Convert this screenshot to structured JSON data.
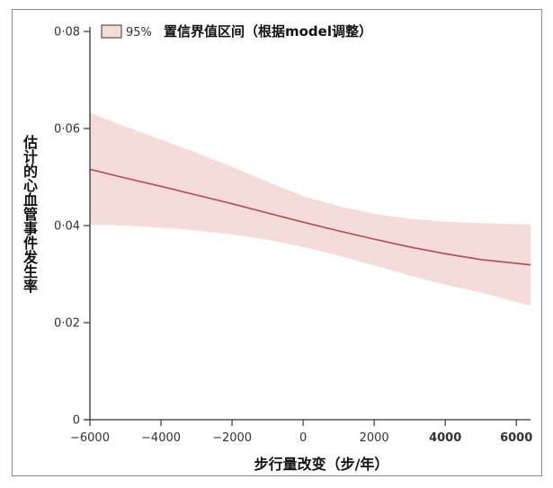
{
  "chart_data": {
    "type": "line",
    "xlabel": "步行量改变（步/年）",
    "ylabel": "估计的心血管事件发生率",
    "xlim": [
      -6000,
      6400
    ],
    "ylim": [
      0,
      0.08
    ],
    "x_ticks": [
      {
        "value": -6000,
        "label": "−6000"
      },
      {
        "value": -4000,
        "label": "−4000"
      },
      {
        "value": -2000,
        "label": "−2000"
      },
      {
        "value": 0,
        "label": "0"
      },
      {
        "value": 2000,
        "label": "2000"
      },
      {
        "value": 4000,
        "label": "4000"
      },
      {
        "value": 6000,
        "label": "6000"
      }
    ],
    "y_ticks": [
      {
        "value": 0,
        "label": "0"
      },
      {
        "value": 0.02,
        "label": "0·02"
      },
      {
        "value": 0.04,
        "label": "0·04"
      },
      {
        "value": 0.06,
        "label": "0·06"
      },
      {
        "value": 0.08,
        "label": "0·08"
      }
    ],
    "legend": {
      "percent": "95%",
      "label": "置信界值区间（根据model调整）",
      "position": "top-left"
    },
    "grid": false,
    "series": [
      {
        "x": [
          -6000,
          -5000,
          -4000,
          -3000,
          -2000,
          -1000,
          0,
          1000,
          2000,
          3000,
          4000,
          5000,
          6400
        ],
        "values": [
          0.0516,
          0.0498,
          0.0481,
          0.0463,
          0.0445,
          0.0426,
          0.0407,
          0.0389,
          0.0372,
          0.0356,
          0.0342,
          0.033,
          0.0319
        ],
        "lower": [
          0.0402,
          0.04,
          0.0396,
          0.039,
          0.0382,
          0.0371,
          0.0356,
          0.0338,
          0.0318,
          0.0297,
          0.0278,
          0.0262,
          0.0235
        ],
        "upper": [
          0.0633,
          0.0604,
          0.0577,
          0.055,
          0.0521,
          0.049,
          0.0461,
          0.044,
          0.0424,
          0.0414,
          0.0408,
          0.0405,
          0.0402
        ]
      }
    ],
    "colors": {
      "line": "#b5485a",
      "band": "#f6dcd9",
      "band_edge": "#e9b8b4",
      "axis": "#333333"
    }
  }
}
